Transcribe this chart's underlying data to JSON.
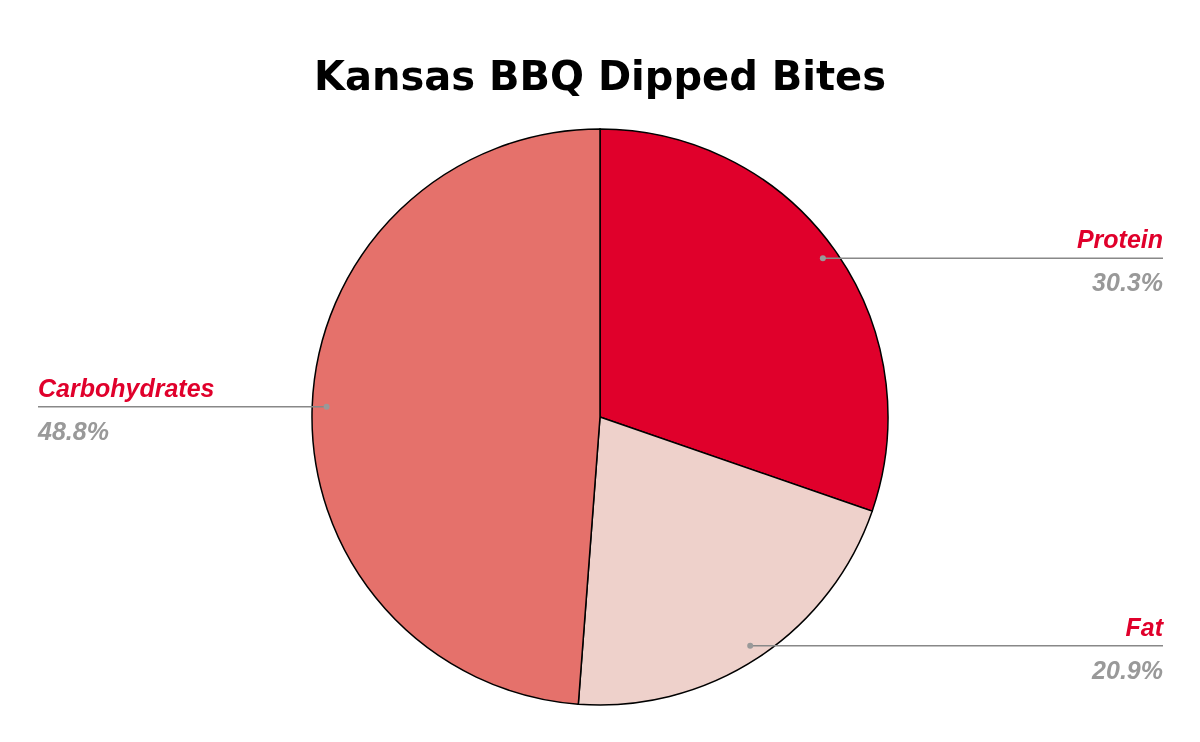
{
  "chart_data": {
    "type": "pie",
    "title": "Kansas BBQ Dipped Bites",
    "categories": [
      "Protein",
      "Fat",
      "Carbohydrates"
    ],
    "values": [
      30.3,
      20.9,
      48.8
    ],
    "colors": [
      "#e0002b",
      "#eed1cb",
      "#e5716b"
    ],
    "value_labels": [
      "30.3%",
      "20.9%",
      "48.8%"
    ]
  }
}
